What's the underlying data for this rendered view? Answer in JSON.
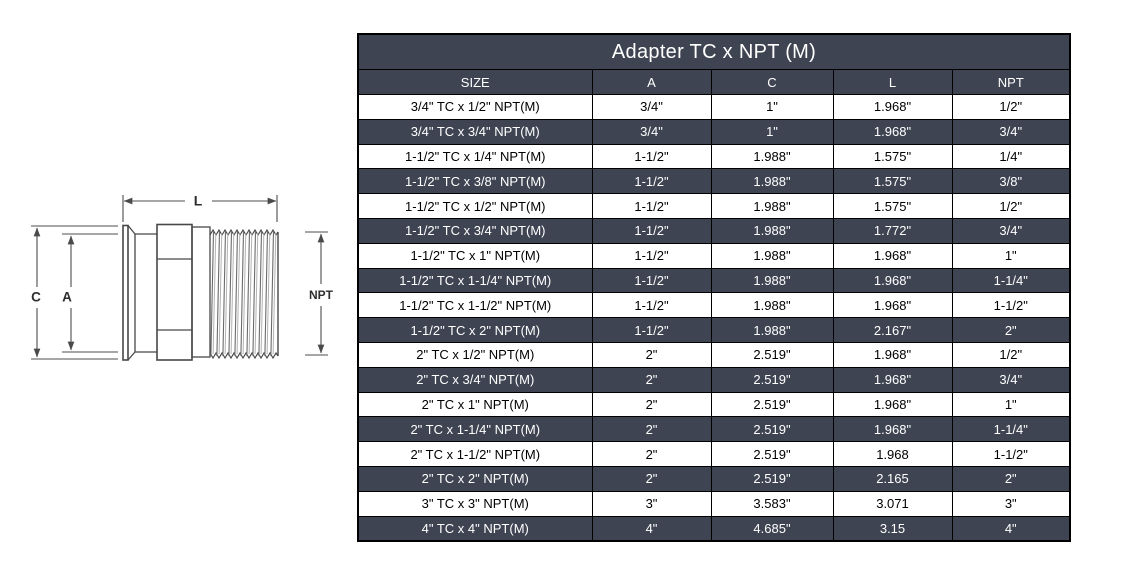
{
  "title": "Adapter TC x NPT (M)",
  "table": {
    "columns": [
      "SIZE",
      "A",
      "C",
      "L",
      "NPT"
    ],
    "rows": [
      [
        "3/4\" TC x 1/2\" NPT(M)",
        "3/4\"",
        "1\"",
        "1.968\"",
        "1/2\""
      ],
      [
        "3/4\" TC x 3/4\" NPT(M)",
        "3/4\"",
        "1\"",
        "1.968\"",
        "3/4\""
      ],
      [
        "1-1/2\" TC x 1/4\" NPT(M)",
        "1-1/2\"",
        "1.988\"",
        "1.575\"",
        "1/4\""
      ],
      [
        "1-1/2\" TC x 3/8\" NPT(M)",
        "1-1/2\"",
        "1.988\"",
        "1.575\"",
        "3/8\""
      ],
      [
        "1-1/2\" TC x 1/2\" NPT(M)",
        "1-1/2\"",
        "1.988\"",
        "1.575\"",
        "1/2\""
      ],
      [
        "1-1/2\" TC x 3/4\" NPT(M)",
        "1-1/2\"",
        "1.988\"",
        "1.772\"",
        "3/4\""
      ],
      [
        "1-1/2\" TC x 1\" NPT(M)",
        "1-1/2\"",
        "1.988\"",
        "1.968\"",
        "1\""
      ],
      [
        "1-1/2\" TC x 1-1/4\" NPT(M)",
        "1-1/2\"",
        "1.988\"",
        "1.968\"",
        "1-1/4\""
      ],
      [
        "1-1/2\" TC x 1-1/2\" NPT(M)",
        "1-1/2\"",
        "1.988\"",
        "1.968\"",
        "1-1/2\""
      ],
      [
        "1-1/2\" TC x 2\" NPT(M)",
        "1-1/2\"",
        "1.988\"",
        "2.167\"",
        "2\""
      ],
      [
        "2\" TC x 1/2\" NPT(M)",
        "2\"",
        "2.519\"",
        "1.968\"",
        "1/2\""
      ],
      [
        "2\" TC x 3/4\" NPT(M)",
        "2\"",
        "2.519\"",
        "1.968\"",
        "3/4\""
      ],
      [
        "2\" TC x 1\" NPT(M)",
        "2\"",
        "2.519\"",
        "1.968\"",
        "1\""
      ],
      [
        "2\" TC x 1-1/4\" NPT(M)",
        "2\"",
        "2.519\"",
        "1.968\"",
        "1-1/4\""
      ],
      [
        "2\" TC x 1-1/2\" NPT(M)",
        "2\"",
        "2.519\"",
        "1.968",
        "1-1/2\""
      ],
      [
        "2\" TC x 2\" NPT(M)",
        "2\"",
        "2.519\"",
        "2.165",
        "2\""
      ],
      [
        "3\" TC x 3\" NPT(M)",
        "3\"",
        "3.583\"",
        "3.071",
        "3\""
      ],
      [
        "4\" TC x 4\" NPT(M)",
        "4\"",
        "4.685\"",
        "3.15",
        "4\""
      ]
    ]
  },
  "diagram": {
    "length_label": "L",
    "clamp_diameter_label": "C",
    "inner_diameter_label": "A",
    "thread_label": "NPT"
  },
  "colors": {
    "header_bg": "#3f4452",
    "dark_row_bg": "#3f4452",
    "light_row_bg": "#ffffff",
    "border": "#000000",
    "header_text": "#ffffff",
    "light_row_text": "#000000"
  }
}
